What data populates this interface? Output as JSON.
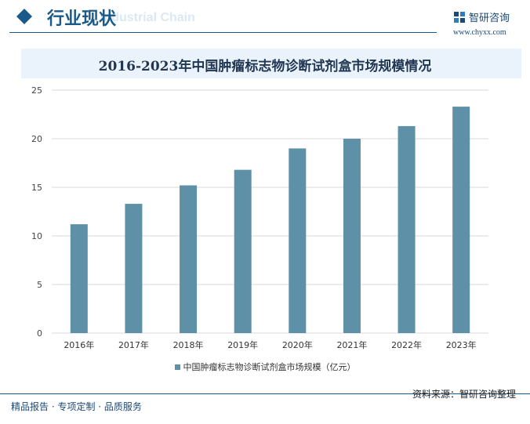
{
  "header": {
    "title": "行业现状",
    "subtitle_en": "Industrial Chain",
    "logo_text": "智研咨询",
    "website": "www.chyxx.com",
    "accent": "#1a5a8a"
  },
  "chart_data": {
    "type": "bar",
    "title": "2016-2023年中国肿瘤标志物诊断试剂盒市场规模情况",
    "categories": [
      "2016年",
      "2017年",
      "2018年",
      "2019年",
      "2020年",
      "2021年",
      "2022年",
      "2023年"
    ],
    "series": [
      {
        "name": "中国肿瘤标志物诊断试剂盒市场规模（亿元）",
        "values": [
          11.2,
          13.3,
          15.2,
          16.8,
          19.0,
          20.0,
          21.3,
          23.3
        ],
        "color": "#5e90a8"
      }
    ],
    "ylim": [
      0,
      25
    ],
    "yticks": [
      "0",
      "5",
      "10",
      "15",
      "20",
      "25"
    ],
    "grid": true,
    "legend": "bottom"
  },
  "footer": {
    "left": "精品报告 · 专项定制 · 品质服务",
    "source": "资料来源：智研咨询整理"
  }
}
